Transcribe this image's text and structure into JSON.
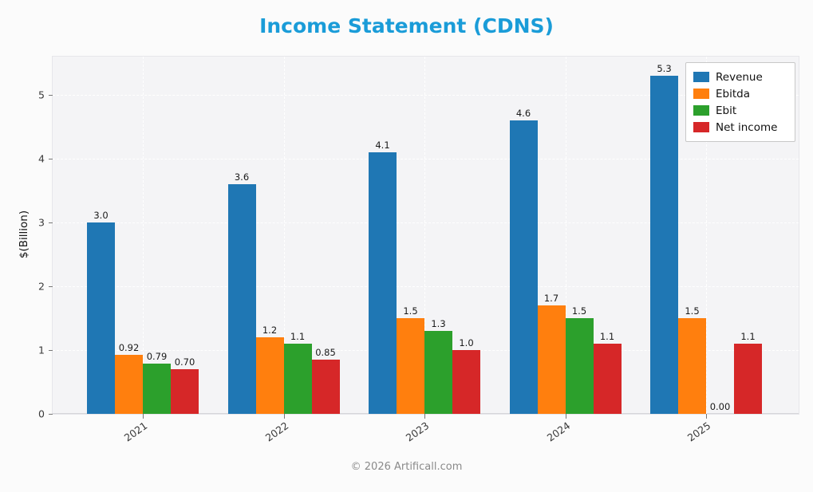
{
  "footer": "© 2026 Artificall.com",
  "colors": {
    "title": "#1a9cd8",
    "figure_background": "#fbfbfb",
    "plot_background": "#f4f4f6",
    "grid": "#ffffff",
    "legend_border": "#c8c8c8"
  },
  "chart_data": {
    "type": "bar",
    "title": "Income Statement (CDNS)",
    "xlabel": "",
    "ylabel": "$(Billion)",
    "categories": [
      "2021",
      "2022",
      "2023",
      "2024",
      "2025"
    ],
    "series": [
      {
        "name": "Revenue",
        "color": "#1f77b4",
        "values": [
          3.0,
          3.6,
          4.1,
          4.6,
          5.3
        ],
        "labels": [
          "3.0",
          "3.6",
          "4.1",
          "4.6",
          "5.3"
        ]
      },
      {
        "name": "Ebitda",
        "color": "#ff7f0e",
        "values": [
          0.92,
          1.2,
          1.5,
          1.7,
          1.5
        ],
        "labels": [
          "0.92",
          "1.2",
          "1.5",
          "1.7",
          "1.5"
        ]
      },
      {
        "name": "Ebit",
        "color": "#2ca02c",
        "values": [
          0.79,
          1.1,
          1.3,
          1.5,
          0.0
        ],
        "labels": [
          "0.79",
          "1.1",
          "1.3",
          "1.5",
          "0.00"
        ]
      },
      {
        "name": "Net income",
        "color": "#d62728",
        "values": [
          0.7,
          0.85,
          1.0,
          1.1,
          1.1
        ],
        "labels": [
          "0.70",
          "0.85",
          "1.0",
          "1.1",
          "1.1"
        ]
      }
    ],
    "yticks": [
      0,
      1,
      2,
      3,
      4,
      5
    ],
    "ylim": [
      0,
      5.6
    ],
    "grid": true,
    "grid_style": "dashed",
    "legend_position": "upper right"
  }
}
